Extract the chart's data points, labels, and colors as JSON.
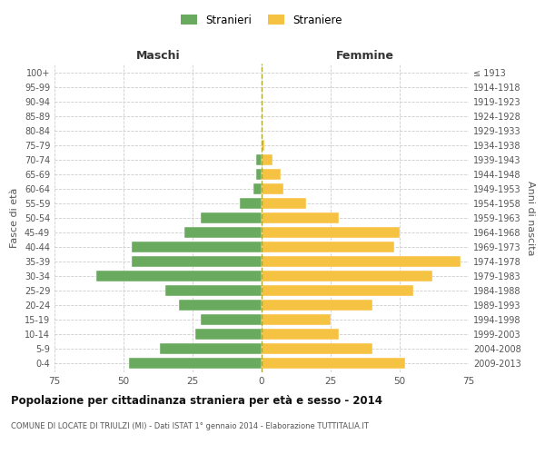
{
  "age_groups": [
    "100+",
    "95-99",
    "90-94",
    "85-89",
    "80-84",
    "75-79",
    "70-74",
    "65-69",
    "60-64",
    "55-59",
    "50-54",
    "45-49",
    "40-44",
    "35-39",
    "30-34",
    "25-29",
    "20-24",
    "15-19",
    "10-14",
    "5-9",
    "0-4"
  ],
  "birth_years": [
    "≤ 1913",
    "1914-1918",
    "1919-1923",
    "1924-1928",
    "1929-1933",
    "1934-1938",
    "1939-1943",
    "1944-1948",
    "1949-1953",
    "1954-1958",
    "1959-1963",
    "1964-1968",
    "1969-1973",
    "1974-1978",
    "1979-1983",
    "1984-1988",
    "1989-1993",
    "1994-1998",
    "1999-2003",
    "2004-2008",
    "2009-2013"
  ],
  "maschi": [
    0,
    0,
    0,
    0,
    0,
    0,
    2,
    2,
    3,
    8,
    22,
    28,
    47,
    47,
    60,
    35,
    30,
    22,
    24,
    37,
    48
  ],
  "femmine": [
    0,
    0,
    0,
    0,
    0,
    1,
    4,
    7,
    8,
    16,
    28,
    50,
    48,
    72,
    62,
    55,
    40,
    25,
    28,
    40,
    52
  ],
  "maschi_color": "#6aaa5e",
  "femmine_color": "#f5c242",
  "title": "Popolazione per cittadinanza straniera per età e sesso - 2014",
  "subtitle": "COMUNE DI LOCATE DI TRIULZI (MI) - Dati ISTAT 1° gennaio 2014 - Elaborazione TUTTITALIA.IT",
  "xlabel_left": "Maschi",
  "xlabel_right": "Femmine",
  "ylabel_left": "Fasce di età",
  "ylabel_right": "Anni di nascita",
  "legend_maschi": "Stranieri",
  "legend_femmine": "Straniere",
  "xlim": 75,
  "background_color": "#ffffff",
  "grid_color": "#cccccc"
}
